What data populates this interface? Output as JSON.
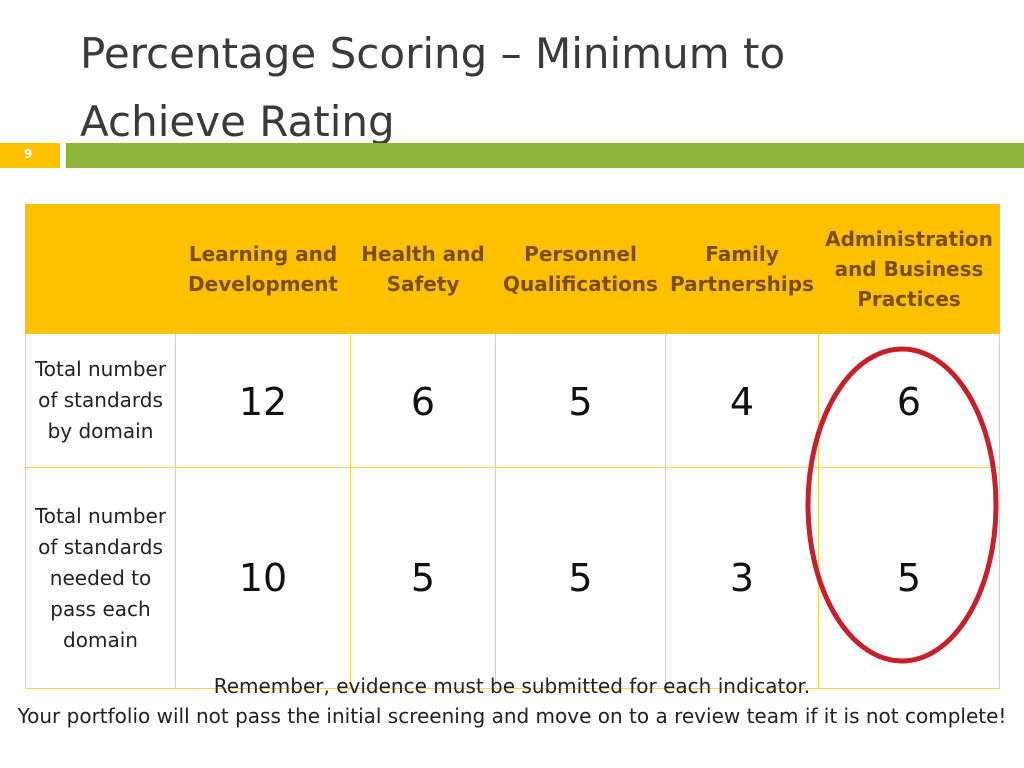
{
  "slide": {
    "title_lines": [
      "Percentage Scoring – Minimum to",
      "Achieve Rating"
    ],
    "number": "9"
  },
  "table": {
    "headers": [
      "",
      "Learning and Development",
      "Health and Safety",
      "Personnel Qualifications",
      "Family Partnerships",
      "Administration and Business Practices"
    ],
    "rows": [
      {
        "label": "Total number of standards by domain",
        "values": [
          "12",
          "6",
          "5",
          "4",
          "6"
        ]
      },
      {
        "label": "Total number of standards needed to pass each domain",
        "values": [
          "10",
          "5",
          "5",
          "3",
          "5"
        ]
      }
    ]
  },
  "footer": {
    "line1": "Remember, evidence must be submitted for each indicator.",
    "line2": "Your portfolio will not pass the initial screening and move on to a review team if it is not complete!"
  },
  "colors": {
    "header_bg": "#ffc000",
    "header_text": "#7a4e05",
    "bar_green": "#8db537",
    "highlight_oval": "#c8202a"
  },
  "annotation": {
    "type": "highlight-oval",
    "target_column": "Administration and Business Practices"
  }
}
